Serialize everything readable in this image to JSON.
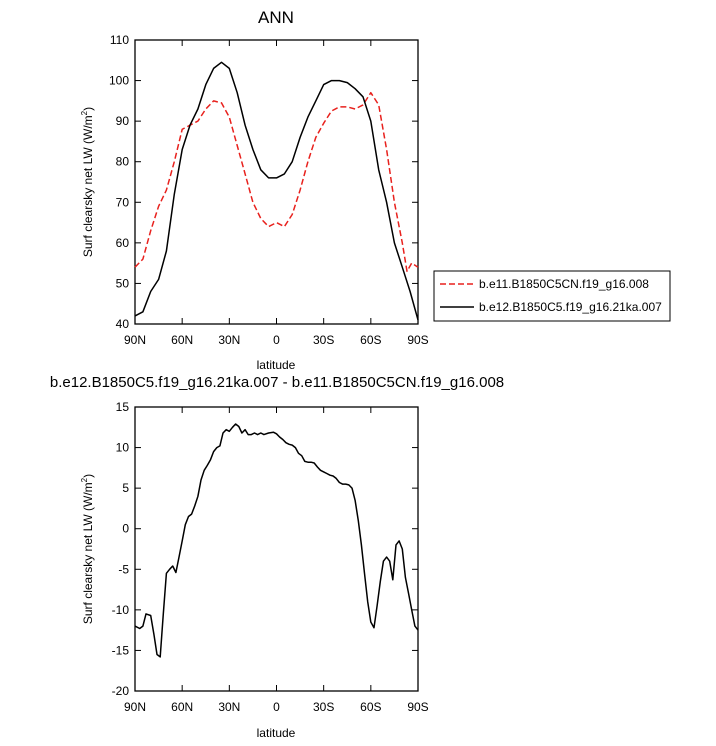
{
  "chart_data": [
    {
      "type": "line",
      "title": "ANN",
      "xlabel": "latitude",
      "ylabel": "Surf clearsky net LW (W/m²)",
      "ylim": [
        40,
        110
      ],
      "yticks": [
        40,
        50,
        60,
        70,
        80,
        90,
        100,
        110
      ],
      "xlim": [
        90,
        -90
      ],
      "xtick_values": [
        90,
        60,
        30,
        0,
        -30,
        -60,
        -90
      ],
      "xtick_labels": [
        "90N",
        "60N",
        "30N",
        "0",
        "30S",
        "60S",
        "90S"
      ],
      "legend_position": "right",
      "series": [
        {
          "name": "b.e11.B1850C5CN.f19_g16.008",
          "color": "#e8211d",
          "dash": "dashed",
          "x": [
            90,
            85,
            80,
            75,
            70,
            65,
            60,
            55,
            50,
            45,
            40,
            35,
            30,
            25,
            20,
            15,
            10,
            5,
            0,
            -5,
            -10,
            -15,
            -20,
            -25,
            -30,
            -35,
            -40,
            -45,
            -50,
            -55,
            -60,
            -65,
            -70,
            -75,
            -80,
            -83,
            -86,
            -90
          ],
          "y": [
            54,
            56,
            63,
            69,
            73,
            80,
            88,
            89,
            90,
            93,
            95,
            94.5,
            91,
            84,
            77,
            70,
            66,
            64,
            65,
            64,
            67,
            73,
            80,
            86,
            89.5,
            92.5,
            93.5,
            93.5,
            93,
            94,
            97,
            94,
            83,
            70,
            60,
            53,
            55,
            54
          ]
        },
        {
          "name": "b.e12.B1850C5.f19_g16.21ka.007",
          "color": "#000000",
          "dash": "solid",
          "x": [
            90,
            85,
            80,
            75,
            70,
            65,
            60,
            55,
            50,
            45,
            40,
            35,
            30,
            25,
            20,
            15,
            10,
            5,
            0,
            -5,
            -10,
            -15,
            -20,
            -25,
            -30,
            -35,
            -40,
            -45,
            -50,
            -55,
            -60,
            -65,
            -70,
            -75,
            -80,
            -85,
            -90
          ],
          "y": [
            42,
            43,
            48,
            51,
            58,
            72,
            83,
            89,
            93,
            99,
            103,
            104.5,
            103,
            97,
            89,
            83,
            78,
            76,
            76,
            77,
            80,
            86,
            91,
            95,
            99,
            100,
            100,
            99.5,
            98,
            96,
            90,
            78,
            70,
            60,
            54,
            48,
            41
          ]
        }
      ]
    },
    {
      "type": "line",
      "title": "b.e12.B1850C5.f19_g16.21ka.007 - b.e11.B1850C5CN.f19_g16.008",
      "xlabel": "latitude",
      "ylabel": "Surf clearsky net LW (W/m²)",
      "ylim": [
        -20,
        15
      ],
      "yticks": [
        -20,
        -15,
        -10,
        -5,
        0,
        5,
        10,
        15
      ],
      "xlim": [
        90,
        -90
      ],
      "xtick_values": [
        90,
        60,
        30,
        0,
        -30,
        -60,
        -90
      ],
      "xtick_labels": [
        "90N",
        "60N",
        "30N",
        "0",
        "30S",
        "60S",
        "90S"
      ],
      "series": [
        {
          "color": "#000000",
          "dash": "solid",
          "x": [
            90,
            87,
            85,
            83,
            80,
            78,
            76,
            74,
            72,
            70,
            68,
            66,
            64,
            62,
            60,
            58,
            56,
            54,
            52,
            50,
            48,
            46,
            44,
            42,
            40,
            38,
            36,
            34,
            32,
            30,
            28,
            26,
            24,
            22,
            20,
            18,
            16,
            14,
            12,
            10,
            8,
            5,
            2,
            0,
            -2,
            -4,
            -6,
            -8,
            -10,
            -12,
            -14,
            -16,
            -18,
            -20,
            -22,
            -24,
            -26,
            -28,
            -30,
            -32,
            -34,
            -36,
            -38,
            -40,
            -42,
            -44,
            -46,
            -48,
            -50,
            -52,
            -54,
            -56,
            -58,
            -60,
            -62,
            -64,
            -66,
            -68,
            -70,
            -72,
            -74,
            -76,
            -78,
            -80,
            -82,
            -84,
            -86,
            -88,
            -90
          ],
          "y": [
            -12,
            -12.3,
            -12,
            -10.5,
            -10.7,
            -13,
            -15.5,
            -15.8,
            -10.5,
            -5.5,
            -5,
            -4.6,
            -5.4,
            -3.5,
            -1.5,
            0.5,
            1.5,
            1.8,
            2.8,
            4,
            6,
            7.2,
            7.8,
            8.5,
            9.5,
            10,
            10.2,
            11.8,
            12.2,
            12,
            12.5,
            12.9,
            12.6,
            11.8,
            12.2,
            11.6,
            11.6,
            11.8,
            11.6,
            11.8,
            11.6,
            11.8,
            11.9,
            11.7,
            11.3,
            11,
            10.6,
            10.4,
            10.3,
            10,
            9.3,
            9,
            8.3,
            8.2,
            8.2,
            8.1,
            7.6,
            7.2,
            7,
            6.8,
            6.6,
            6.5,
            6.2,
            5.7,
            5.5,
            5.5,
            5.4,
            5,
            3.5,
            1,
            -2,
            -5.5,
            -9,
            -11.5,
            -12.2,
            -9.5,
            -6.5,
            -4,
            -3.5,
            -4,
            -6.3,
            -2,
            -1.5,
            -2.5,
            -6,
            -8,
            -10,
            -12,
            -12.5
          ]
        }
      ]
    }
  ]
}
